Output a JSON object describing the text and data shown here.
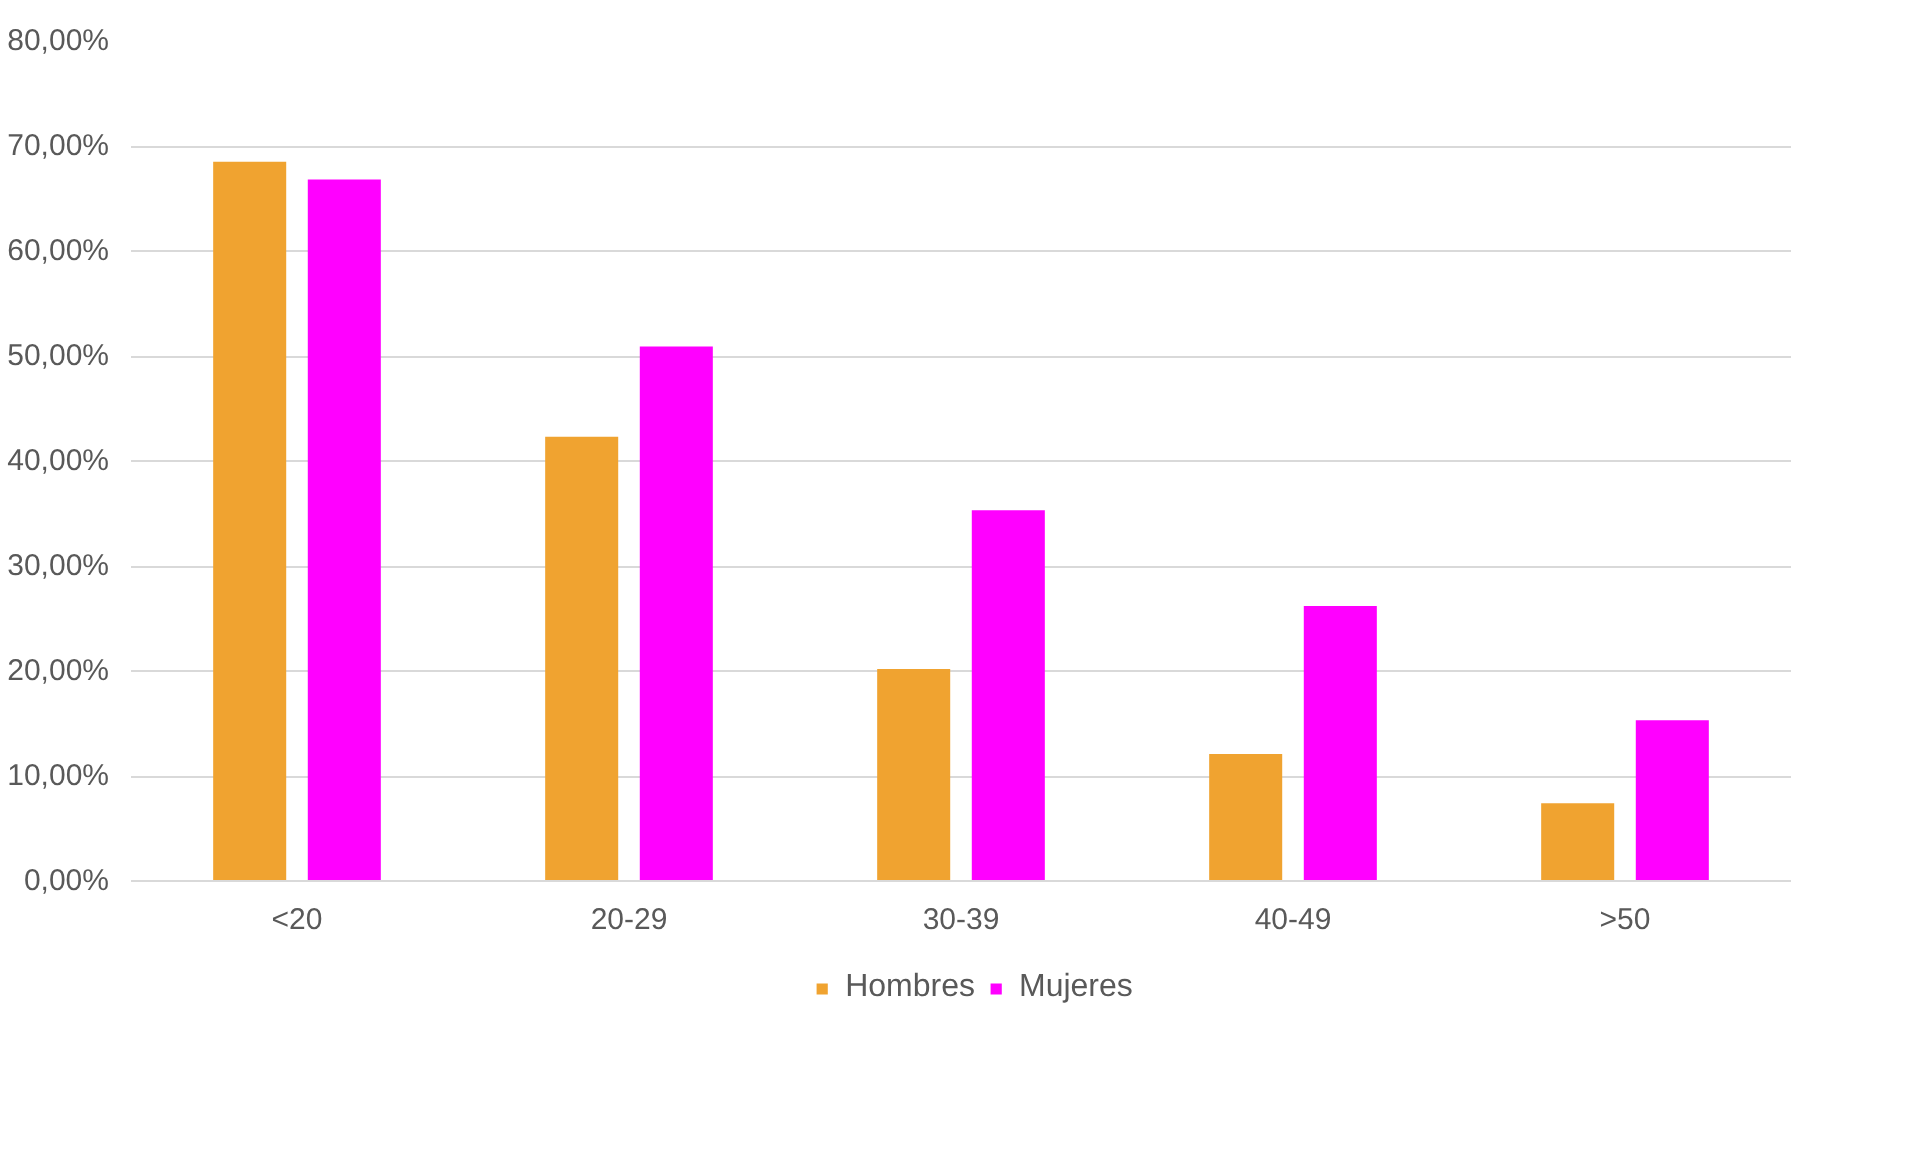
{
  "chart_data": {
    "type": "bar",
    "categories": [
      "<20",
      "20-29",
      "30-39",
      "40-49",
      ">50"
    ],
    "series": [
      {
        "name": "Hombres",
        "color": "#f0a330",
        "values": [
          68.5,
          42.3,
          20.2,
          12.1,
          7.4
        ]
      },
      {
        "name": "Mujeres",
        "color": "#ff00ff",
        "values": [
          66.8,
          50.9,
          35.3,
          26.2,
          15.3
        ]
      }
    ],
    "ylim": [
      0,
      80
    ],
    "yticks": [
      {
        "value": 0,
        "label": "0,00%"
      },
      {
        "value": 10,
        "label": "10,00%"
      },
      {
        "value": 20,
        "label": "20,00%"
      },
      {
        "value": 30,
        "label": "30,00%"
      },
      {
        "value": 40,
        "label": "40,00%"
      },
      {
        "value": 50,
        "label": "50,00%"
      },
      {
        "value": 60,
        "label": "60,00%"
      },
      {
        "value": 70,
        "label": "70,00%"
      },
      {
        "value": 80,
        "label": "80,00%"
      }
    ],
    "grid": "y",
    "legend": "bottom"
  }
}
